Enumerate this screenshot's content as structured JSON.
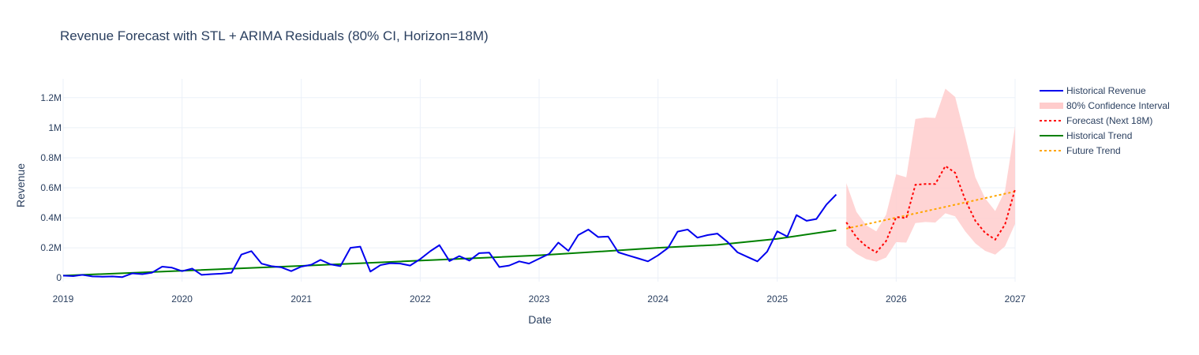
{
  "chart_data": {
    "type": "line",
    "title": "Revenue Forecast with STL + ARIMA Residuals (80% CI, Horizon=18M)",
    "xlabel": "Date",
    "ylabel": "Revenue",
    "xlim": [
      "2019-01-01",
      "2027-01-01"
    ],
    "ylim": [
      -25000,
      1325000
    ],
    "x_tick_labels": [
      "2019",
      "2020",
      "2021",
      "2022",
      "2023",
      "2024",
      "2025",
      "2026",
      "2027"
    ],
    "x_tick_dates": [
      "2019-01-01",
      "2020-01-01",
      "2021-01-01",
      "2022-01-01",
      "2023-01-01",
      "2024-01-01",
      "2025-01-01",
      "2026-01-01",
      "2027-01-01"
    ],
    "y_tick_values": [
      0,
      200000,
      400000,
      600000,
      800000,
      1000000,
      1200000
    ],
    "y_tick_labels": [
      "0",
      "0.2M",
      "0.4M",
      "0.6M",
      "0.8M",
      "1M",
      "1.2M"
    ],
    "grid": true,
    "legend": "right",
    "colors": {
      "historical": "#0000ee",
      "ci": "#ffcccc",
      "forecast": "#ff0000",
      "hist_trend": "#008000",
      "future_trend": "#ffa500",
      "grid": "#ebf0f8",
      "text": "#2a3f5f"
    },
    "legend_entries": [
      {
        "key": "historical",
        "label": "Historical Revenue",
        "style": "line"
      },
      {
        "key": "ci",
        "label": "80% Confidence Interval",
        "style": "band"
      },
      {
        "key": "forecast",
        "label": "Forecast (Next 18M)",
        "style": "dotted"
      },
      {
        "key": "hist_trend",
        "label": "Historical Trend",
        "style": "line"
      },
      {
        "key": "future_trend",
        "label": "Future Trend",
        "style": "dotted"
      }
    ],
    "historical_start": "2019-01",
    "historical_revenue": [
      15000,
      12000,
      20000,
      10000,
      8000,
      10000,
      5000,
      30000,
      25000,
      35000,
      75000,
      68000,
      45000,
      62000,
      20000,
      25000,
      28000,
      35000,
      155000,
      178000,
      95000,
      78000,
      70000,
      45000,
      75000,
      88000,
      120000,
      90000,
      78000,
      200000,
      208000,
      42000,
      85000,
      98000,
      95000,
      82000,
      125000,
      178000,
      218000,
      112000,
      145000,
      115000,
      165000,
      168000,
      72000,
      82000,
      110000,
      95000,
      128000,
      160000,
      235000,
      180000,
      285000,
      322000,
      272000,
      275000,
      170000,
      150000,
      130000,
      110000,
      150000,
      200000,
      308000,
      322000,
      268000,
      285000,
      295000,
      240000,
      170000,
      140000,
      110000,
      175000,
      310000,
      275000,
      418000,
      380000,
      392000,
      488000,
      555000
    ],
    "historical_trend_points": [
      {
        "x": "2019-01-01",
        "y": 15000
      },
      {
        "x": "2021-01-01",
        "y": 80000
      },
      {
        "x": "2023-01-01",
        "y": 150000
      },
      {
        "x": "2024-01-01",
        "y": 200000
      },
      {
        "x": "2024-07-01",
        "y": 220000
      },
      {
        "x": "2025-01-01",
        "y": 260000
      },
      {
        "x": "2025-07-01",
        "y": 318000
      }
    ],
    "forecast_start": "2025-08",
    "forecast": [
      370000,
      270000,
      210000,
      170000,
      245000,
      405000,
      398000,
      620000,
      625000,
      625000,
      745000,
      700000,
      520000,
      380000,
      300000,
      255000,
      355000,
      590000
    ],
    "ci_lower": [
      215000,
      160000,
      125000,
      108000,
      135000,
      238000,
      235000,
      365000,
      372000,
      368000,
      430000,
      410000,
      310000,
      230000,
      180000,
      155000,
      210000,
      360000
    ],
    "ci_upper": [
      630000,
      440000,
      350000,
      310000,
      420000,
      690000,
      670000,
      1058000,
      1068000,
      1065000,
      1260000,
      1205000,
      940000,
      670000,
      530000,
      445000,
      580000,
      1010000
    ],
    "future_trend_points": [
      {
        "x": "2025-08-01",
        "y": 328000
      },
      {
        "x": "2027-01-01",
        "y": 575000
      }
    ]
  }
}
